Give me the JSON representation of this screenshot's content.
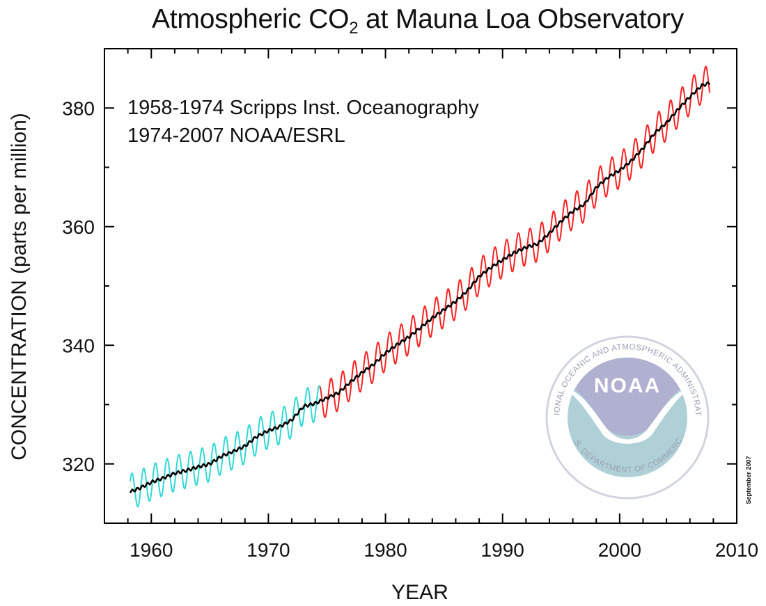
{
  "chart_data": {
    "type": "line",
    "title_main": "Atmospheric CO",
    "title_sub": "2",
    "title_tail": " at Mauna Loa Observatory",
    "xlabel": "YEAR",
    "ylabel": "CONCENTRATION (parts per million)",
    "xlim": [
      1956,
      2010
    ],
    "ylim": [
      310,
      390
    ],
    "xticks": [
      1960,
      1970,
      1980,
      1990,
      2000,
      2010
    ],
    "yticks": [
      320,
      340,
      360,
      380
    ],
    "annotations": [
      "1958-1974 Scripps Inst. Oceanography",
      "1974-2007 NOAA/ESRL"
    ],
    "side_note": "September 2007",
    "series": [
      {
        "color": "#30d8d8",
        "seasonal_amplitude": 3.0,
        "x": [
          1958.2,
          1959,
          1960,
          1961,
          1962,
          1963,
          1964,
          1965,
          1966,
          1967,
          1968,
          1969,
          1970,
          1971,
          1972,
          1973,
          1974.4
        ],
        "y": [
          315.3,
          315.9,
          316.9,
          317.6,
          318.4,
          318.9,
          319.5,
          320.0,
          321.3,
          322.1,
          323.0,
          324.6,
          325.6,
          326.3,
          327.4,
          329.7,
          330.2
        ]
      },
      {
        "color": "#ff2020",
        "seasonal_amplitude": 3.0,
        "x": [
          1974.4,
          1975,
          1976,
          1977,
          1978,
          1979,
          1980,
          1981,
          1982,
          1983,
          1984,
          1985,
          1986,
          1987,
          1988,
          1989,
          1990,
          1991,
          1992,
          1993,
          1994,
          1995,
          1996,
          1997,
          1998,
          1999,
          2000,
          2001,
          2002,
          2003,
          2004,
          2005,
          2006,
          2007,
          2007.7
        ],
        "y": [
          330.2,
          331.1,
          332.0,
          333.8,
          335.4,
          336.8,
          338.7,
          340.1,
          341.4,
          343.0,
          344.6,
          346.0,
          347.4,
          349.2,
          351.6,
          353.1,
          354.4,
          355.6,
          356.5,
          357.1,
          358.9,
          360.9,
          362.6,
          363.8,
          366.6,
          368.3,
          369.5,
          371.1,
          373.2,
          375.8,
          377.5,
          379.8,
          381.9,
          383.8,
          384.2
        ]
      },
      {
        "color": "#000000",
        "seasonal_amplitude": 0,
        "x": [
          1958.2,
          1959,
          1960,
          1961,
          1962,
          1963,
          1964,
          1965,
          1966,
          1967,
          1968,
          1969,
          1970,
          1971,
          1972,
          1973,
          1974,
          1975,
          1976,
          1977,
          1978,
          1979,
          1980,
          1981,
          1982,
          1983,
          1984,
          1985,
          1986,
          1987,
          1988,
          1989,
          1990,
          1991,
          1992,
          1993,
          1994,
          1995,
          1996,
          1997,
          1998,
          1999,
          2000,
          2001,
          2002,
          2003,
          2004,
          2005,
          2006,
          2007,
          2007.7
        ],
        "y": [
          315.3,
          315.9,
          316.9,
          317.6,
          318.4,
          318.9,
          319.5,
          320.0,
          321.3,
          322.1,
          323.0,
          324.6,
          325.6,
          326.3,
          327.4,
          329.7,
          330.2,
          331.1,
          332.0,
          333.8,
          335.4,
          336.8,
          338.7,
          340.1,
          341.4,
          343.0,
          344.6,
          346.0,
          347.4,
          349.2,
          351.6,
          353.1,
          354.4,
          355.6,
          356.5,
          357.1,
          358.9,
          360.9,
          362.6,
          363.8,
          366.6,
          368.3,
          369.5,
          371.1,
          373.2,
          375.8,
          377.5,
          379.8,
          381.9,
          383.8,
          384.2
        ]
      }
    ],
    "grid": false,
    "legend": "none"
  },
  "logo": {
    "name": "NOAA",
    "ring_text": "NATIONAL OCEANIC AND ATMOSPHERIC ADMINISTRATION",
    "bottom_text": "U.S. DEPARTMENT OF COMMERCE",
    "colors": {
      "sky": "#b0b0d0",
      "sea": "#b0d0d8",
      "ring": "#d8dce4"
    }
  }
}
